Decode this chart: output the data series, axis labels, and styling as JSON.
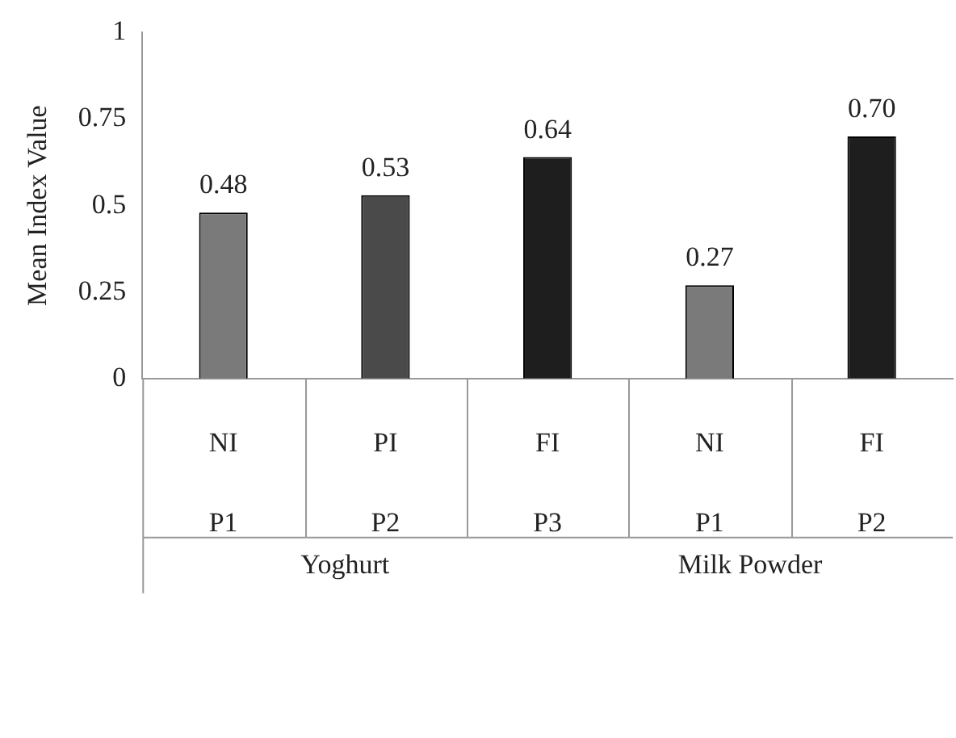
{
  "chart_data": {
    "type": "bar",
    "ylabel": "Mean Index Value",
    "categories": [
      "NI\nP1",
      "PI\nP2",
      "FI\nP3",
      "NI\nP1",
      "FI\nP2"
    ],
    "values": [
      0.48,
      0.53,
      0.64,
      0.27,
      0.7
    ],
    "colors": [
      "#7a7a7a",
      "#4a4a4a",
      "#1e1e1e",
      "#7a7a7a",
      "#1e1e1e"
    ],
    "value_labels": [
      "0.48",
      "0.53",
      "0.64",
      "0.27",
      "0.70"
    ],
    "ylim": [
      0,
      1
    ],
    "yticks": [
      0,
      0.25,
      0.5,
      0.75,
      1
    ],
    "annotations": [
      "Yoghurt",
      "Milk Powder"
    ],
    "grid": false,
    "legend": false
  }
}
